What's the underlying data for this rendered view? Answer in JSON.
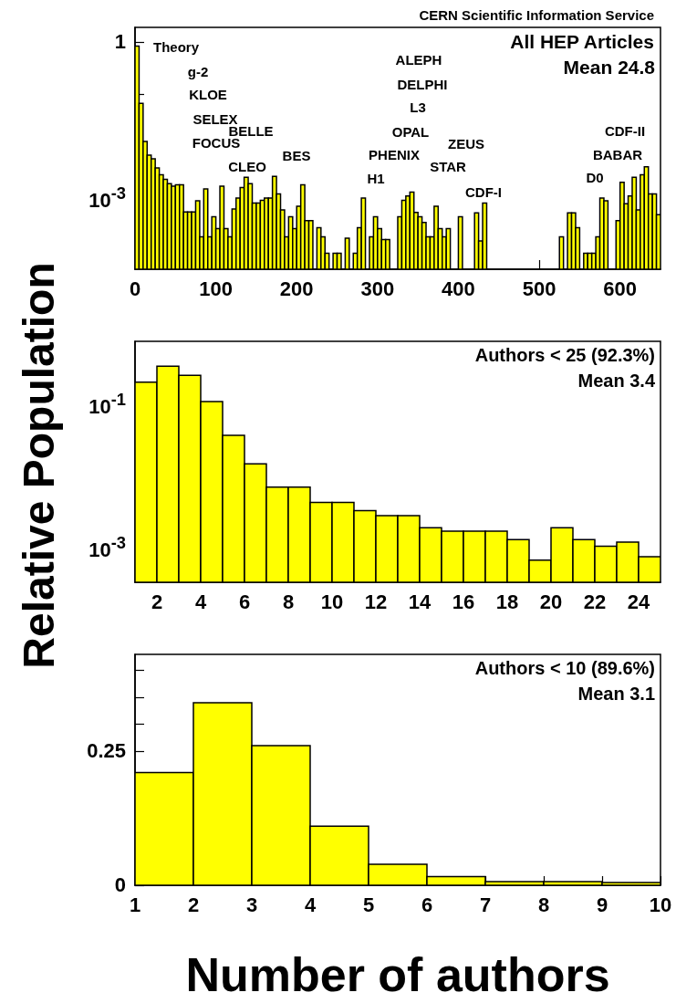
{
  "chart_data": [
    {
      "type": "histogram",
      "title": "CERN Scientific Information Service",
      "log": "y",
      "color": "#ffff00",
      "bins": [
        0,
        5,
        10,
        15,
        20,
        25,
        30,
        35,
        40,
        45,
        50,
        55,
        60,
        65,
        70,
        75,
        80,
        85,
        90,
        95,
        100,
        105,
        110,
        115,
        120,
        125,
        130,
        135,
        140,
        145,
        150,
        155,
        160,
        165,
        170,
        175,
        180,
        185,
        190,
        195,
        200,
        205,
        210,
        215,
        220,
        225,
        230,
        235,
        240,
        245,
        250,
        255,
        260,
        265,
        270,
        275,
        280,
        285,
        290,
        295,
        300,
        305,
        310,
        315,
        320,
        325,
        330,
        335,
        340,
        345,
        350,
        355,
        360,
        365,
        370,
        375,
        380,
        385,
        390,
        395,
        400,
        405,
        410,
        415,
        420,
        425,
        430,
        435,
        440,
        445,
        450,
        455,
        460,
        465,
        470,
        475,
        480,
        485,
        490,
        495,
        500,
        505,
        510,
        515,
        520,
        525,
        530,
        535,
        540,
        545,
        550,
        555,
        560,
        565,
        570,
        575,
        580,
        585,
        590,
        595,
        600,
        605,
        610,
        615,
        620,
        625,
        630,
        635,
        640,
        645,
        650
      ],
      "values": [
        0.83,
        0.066,
        0.0122,
        0.0067,
        0.0057,
        0.0038,
        0.0028,
        0.0023,
        0.0019,
        0.0017,
        0.0018,
        0.0018,
        0.00054,
        0.00054,
        0.00054,
        0.00089,
        0.00018,
        0.0015,
        0.00018,
        0.00044,
        0.00026,
        0.0017,
        0.00026,
        0.00018,
        0.00062,
        0.001,
        0.0016,
        0.0025,
        0.0019,
        0.0008,
        0.0008,
        0.00091,
        0.001,
        0.001,
        0.0026,
        0.0012,
        0.00059,
        0.00018,
        0.00044,
        0.00026,
        0.0007,
        0.0018,
        0.00037,
        0.00037,
        null,
        0.00027,
        0.00018,
        8.7e-05,
        null,
        8.7e-05,
        8.7e-05,
        null,
        0.00017,
        null,
        8.7e-05,
        0.00027,
        0.001,
        null,
        0.00018,
        0.00044,
        0.00026,
        0.00016,
        0.00016,
        null,
        null,
        0.00044,
        0.00091,
        0.0011,
        0.0013,
        0.00053,
        0.00044,
        0.00034,
        0.00018,
        0.00018,
        0.0007,
        0.00026,
        0.00018,
        0.00026,
        null,
        null,
        0.00044,
        null,
        null,
        null,
        0.00052,
        0.00015,
        0.0008,
        null,
        null,
        null,
        null,
        null,
        null,
        null,
        null,
        null,
        null,
        null,
        null,
        null,
        null,
        null,
        null,
        null,
        null,
        0.00018,
        null,
        0.00052,
        0.00052,
        0.00027,
        null,
        8.7e-05,
        8.7e-05,
        8.7e-05,
        0.00018,
        0.001,
        0.00089,
        null,
        null,
        0.00037,
        0.002,
        0.00078,
        0.0011,
        0.0025,
        0.00059,
        0.0028,
        0.004,
        0.0012,
        0.0012,
        0.00048
      ],
      "xlim": [
        0,
        650
      ],
      "xticks": [
        0,
        100,
        200,
        300,
        400,
        500,
        600
      ],
      "ylim": [
        4.3e-05,
        1.9
      ],
      "yticks": [
        {
          "value": 0.0001,
          "label": null
        },
        {
          "value": 0.001,
          "label": "10$^{-3}$"
        },
        {
          "value": 0.01,
          "label": null
        },
        {
          "value": 0.1,
          "label": null
        },
        1
      ],
      "annotations": [
        "All HEP Articles",
        "Mean 24.8",
        "Theory",
        "g-2",
        "KLOE",
        "SELEX",
        "FOCUS",
        "BELLE",
        "CLEO",
        "BES",
        "ALEPH",
        "DELPHI",
        "L3",
        "OPAL",
        "PHENIX",
        "H1",
        "ZEUS",
        "STAR",
        "CDF-I",
        "CDF-II",
        "BABAR",
        "D0"
      ]
    },
    {
      "type": "histogram",
      "ylabel": "Relative Population",
      "log": "y",
      "color": "#ffff00",
      "bins": [
        1,
        2,
        3,
        4,
        5,
        6,
        7,
        8,
        9,
        10,
        11,
        12,
        13,
        14,
        15,
        16,
        17,
        18,
        19,
        20,
        21,
        22,
        23,
        24,
        25
      ],
      "values": [
        0.205,
        0.343,
        0.254,
        0.11,
        0.037,
        0.0148,
        0.007,
        0.007,
        0.0043,
        0.0043,
        0.0033,
        0.0028,
        0.0028,
        0.0019,
        0.0017,
        0.0017,
        0.0017,
        0.0013,
        0.00067,
        0.0019,
        0.0013,
        0.00105,
        0.0012,
        0.00075
      ],
      "xlim": [
        1,
        25
      ],
      "xticks": [
        2,
        4,
        6,
        8,
        10,
        12,
        14,
        16,
        18,
        20,
        22,
        24
      ],
      "ylim": [
        0.00033,
        0.76
      ],
      "yticks": [
        {
          "value": 0.001,
          "label": "10$^{-3}$"
        },
        {
          "value": 0.01,
          "label": null
        },
        {
          "value": 0.1,
          "label": "10$^{-1}$"
        }
      ],
      "annotations": [
        "Authors < 25 (92.3%)",
        "Mean 3.4"
      ]
    },
    {
      "type": "histogram",
      "xlabel": "Number of authors",
      "color": "#ffff00",
      "bins": [
        1,
        2,
        3,
        4,
        5,
        6,
        7,
        8,
        9,
        10
      ],
      "values": [
        0.21,
        0.34,
        0.26,
        0.11,
        0.039,
        0.016,
        0.007,
        0.007,
        0.005
      ],
      "xlim": [
        1,
        10
      ],
      "xticks": [
        1,
        2,
        3,
        4,
        5,
        6,
        7,
        8,
        9,
        10
      ],
      "ylim": [
        0,
        0.43
      ],
      "yticks": [
        0,
        {
          "value": 0.05,
          "label": null
        },
        {
          "value": 0.1,
          "label": null
        },
        {
          "value": 0.15,
          "label": null
        },
        {
          "value": 0.2,
          "label": null
        },
        0.25,
        {
          "value": 0.3,
          "label": null
        },
        {
          "value": 0.35,
          "label": null
        },
        {
          "value": 0.4,
          "label": null
        }
      ],
      "annotations": [
        "Authors < 10 (89.6%)",
        "Mean 3.1"
      ]
    }
  ]
}
